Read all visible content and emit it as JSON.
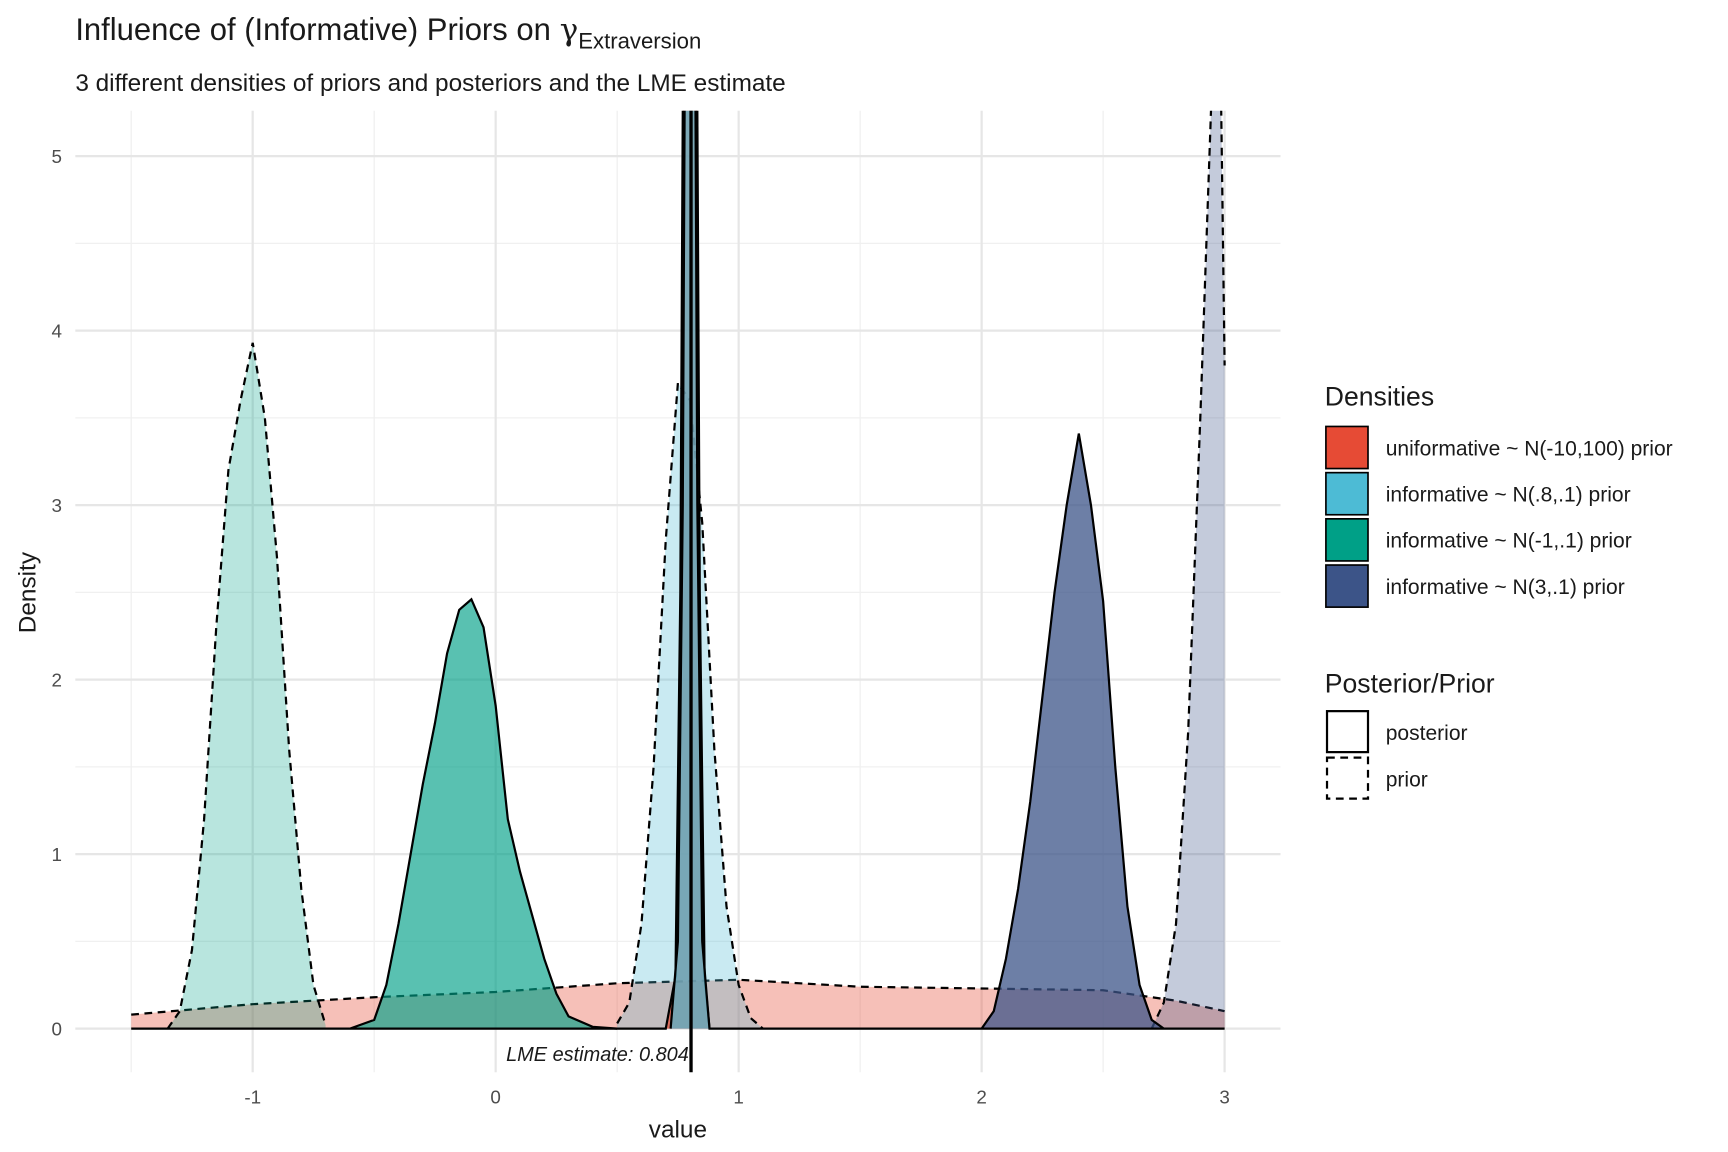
{
  "chart_data": {
    "type": "density",
    "title": "Influence of (Informative) Priors on",
    "title_symbol": "γ",
    "title_subscript": "Extraversion",
    "subtitle": "3 different densities of priors and posteriors and the LME estimate",
    "x_label": "value",
    "y_label": "Density",
    "xlim": [
      -1.73,
      3.23
    ],
    "ylim": [
      -0.25,
      5.26
    ],
    "xticks": [
      -1,
      0,
      1,
      2,
      3
    ],
    "yticks": [
      0,
      1,
      2,
      3,
      4,
      5
    ],
    "x_minor_ticks": [
      -1.5,
      -0.5,
      0.5,
      1.5,
      2.5
    ],
    "y_minor_ticks": [
      0.5,
      1.5,
      2.5,
      3.5,
      4.5
    ],
    "grid": true,
    "vline": {
      "value": 0.804,
      "label": "LME estimate:  0.804"
    },
    "legends": [
      {
        "title": "Densities",
        "items": [
          {
            "label": "uniformative ~ N(-10,100) prior",
            "color": "#E64B35"
          },
          {
            "label": "informative ~ N(.8,.1) prior",
            "color": "#4DBBD5"
          },
          {
            "label": "informative ~ N(-1,.1) prior",
            "color": "#00A087"
          },
          {
            "label": "informative ~ N(3,.1) prior",
            "color": "#3C5488"
          }
        ]
      },
      {
        "title": "Posterior/Prior",
        "items": [
          {
            "label": "posterior",
            "linetype": "solid"
          },
          {
            "label": "prior",
            "linetype": "dashed"
          }
        ]
      }
    ],
    "series": [
      {
        "group": 0,
        "linetype": "dashed",
        "alpha": 0.35,
        "x": [
          -1.5,
          -1,
          -0.5,
          0,
          0.5,
          1,
          1.5,
          2,
          2.5,
          2.8,
          3
        ],
        "values": [
          0.08,
          0.14,
          0.18,
          0.21,
          0.26,
          0.28,
          0.24,
          0.23,
          0.22,
          0.16,
          0.1
        ]
      },
      {
        "group": 2,
        "linetype": "dashed",
        "alpha": 0.28,
        "x": [
          -1.35,
          -1.3,
          -1.25,
          -1.2,
          -1.15,
          -1.1,
          -1.05,
          -1,
          -0.95,
          -0.9,
          -0.85,
          -0.8,
          -0.75,
          -0.7
        ],
        "values": [
          0,
          0.1,
          0.45,
          1.2,
          2.3,
          3.2,
          3.6,
          3.93,
          3.5,
          2.7,
          1.6,
          0.8,
          0.25,
          0.02
        ]
      },
      {
        "group": 1,
        "linetype": "dashed",
        "alpha": 0.3,
        "x": [
          0.5,
          0.55,
          0.6,
          0.65,
          0.7,
          0.75,
          0.8,
          0.85,
          0.9,
          0.95,
          1,
          1.05,
          1.1
        ],
        "values": [
          0.03,
          0.15,
          0.6,
          1.5,
          2.8,
          3.7,
          3.6,
          2.9,
          1.6,
          0.7,
          0.25,
          0.06,
          0
        ]
      },
      {
        "group": 3,
        "linetype": "dashed",
        "alpha": 0.3,
        "x": [
          2.7,
          2.75,
          2.8,
          2.85,
          2.9,
          2.95,
          2.98,
          3
        ],
        "values": [
          0,
          0.15,
          0.6,
          1.7,
          3.5,
          5.5,
          5.9,
          3.8
        ]
      },
      {
        "group": 2,
        "linetype": "solid",
        "alpha": 0.65,
        "x": [
          -0.6,
          -0.5,
          -0.45,
          -0.4,
          -0.35,
          -0.3,
          -0.25,
          -0.2,
          -0.15,
          -0.1,
          -0.05,
          0,
          0.05,
          0.1,
          0.15,
          0.2,
          0.25,
          0.3,
          0.4,
          0.5
        ],
        "values": [
          0,
          0.05,
          0.25,
          0.6,
          1,
          1.4,
          1.75,
          2.15,
          2.4,
          2.46,
          2.3,
          1.85,
          1.2,
          0.9,
          0.65,
          0.4,
          0.2,
          0.07,
          0.01,
          0
        ]
      },
      {
        "group": 3,
        "linetype": "solid",
        "alpha": 0.75,
        "x": [
          2,
          2.05,
          2.1,
          2.15,
          2.2,
          2.25,
          2.3,
          2.35,
          2.4,
          2.45,
          2.5,
          2.55,
          2.6,
          2.65,
          2.7,
          2.75
        ],
        "values": [
          0,
          0.1,
          0.4,
          0.8,
          1.3,
          1.9,
          2.5,
          3,
          3.41,
          3,
          2.45,
          1.5,
          0.7,
          0.25,
          0.05,
          0
        ]
      },
      {
        "group": 0,
        "linetype": "solid",
        "alpha": 0.7,
        "x": [
          -1.5,
          0.7,
          0.74,
          0.76,
          0.78,
          0.8,
          0.82,
          0.84,
          0.86,
          0.88,
          3
        ],
        "values": [
          0,
          0,
          0.3,
          2.5,
          8,
          10,
          8,
          2.5,
          0.3,
          0,
          0
        ]
      },
      {
        "group": 1,
        "linetype": "solid",
        "alpha": 0.7,
        "x": [
          0.72,
          0.75,
          0.77,
          0.79,
          0.81,
          0.83,
          0.85,
          0.88
        ],
        "values": [
          0,
          0.5,
          3,
          9,
          9,
          3,
          0.5,
          0
        ]
      }
    ]
  }
}
